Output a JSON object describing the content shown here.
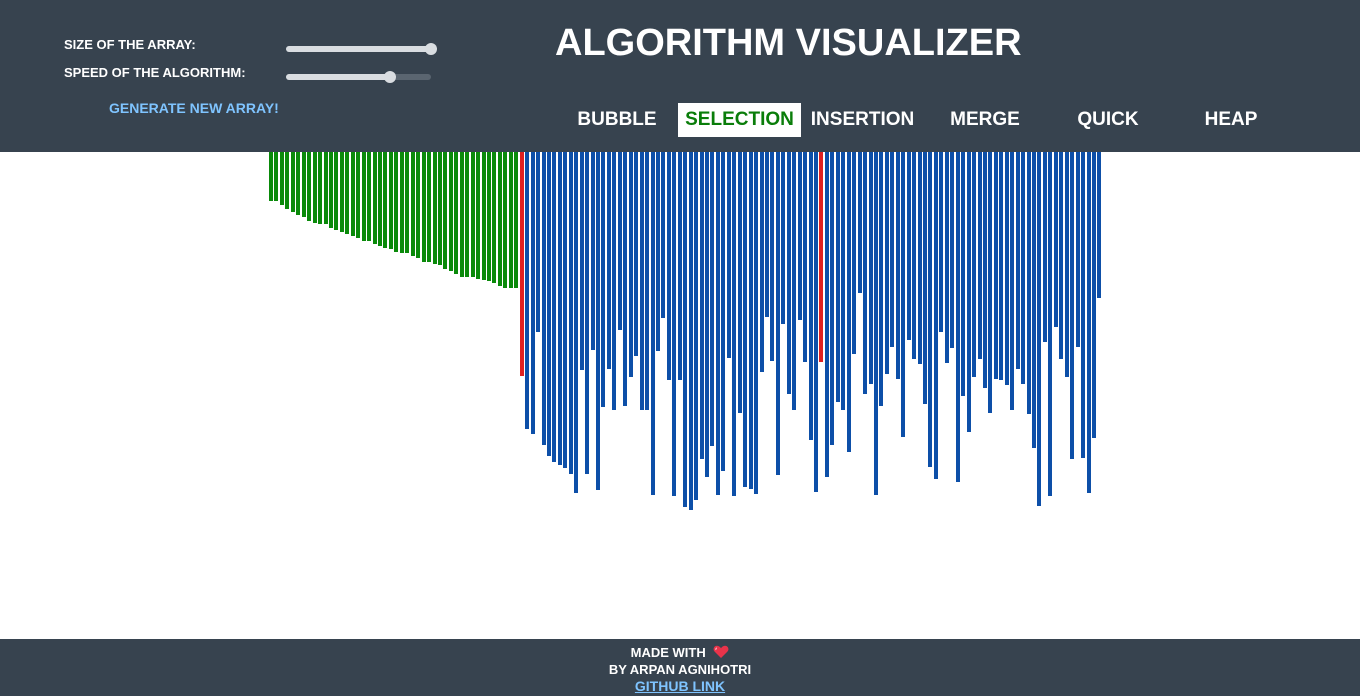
{
  "controls": {
    "size_label": "SIZE OF THE ARRAY:",
    "speed_label": "SPEED OF THE ALGORITHM:",
    "size_value": 1.0,
    "speed_value": 0.72,
    "generate_label": "GENERATE NEW ARRAY!"
  },
  "header": {
    "title": "ALGORITHM VISUALIZER"
  },
  "algorithms": [
    {
      "label": "BUBBLE",
      "active": false
    },
    {
      "label": "SELECTION",
      "active": true
    },
    {
      "label": "INSERTION",
      "active": false
    },
    {
      "label": "MERGE",
      "active": false
    },
    {
      "label": "QUICK",
      "active": false
    },
    {
      "label": "HEAP",
      "active": false
    }
  ],
  "colors": {
    "header_bg": "#37434f",
    "sorted": "#0a8a0a",
    "unsorted": "#0d4fa8",
    "highlight": "#e02020",
    "active_text": "#0a7d0a",
    "link": "#7fc4ff"
  },
  "array": {
    "bar_heights": [
      49,
      49,
      53,
      57,
      60,
      63,
      65,
      69,
      71,
      72,
      72,
      76,
      78,
      80,
      82,
      84,
      86,
      89,
      89,
      92,
      94,
      96,
      97,
      100,
      101,
      101,
      104,
      106,
      110,
      110,
      112,
      113,
      117,
      119,
      122,
      125,
      125,
      125,
      127,
      128,
      129,
      131,
      134,
      136,
      136,
      136,
      224,
      277,
      282,
      180,
      293,
      304,
      310,
      313,
      316,
      322,
      341,
      218,
      322,
      198,
      338,
      255,
      217,
      258,
      178,
      254,
      225,
      204,
      258,
      258,
      343,
      199,
      166,
      228,
      344,
      228,
      355,
      358,
      348,
      307,
      325,
      294,
      343,
      319,
      206,
      344,
      261,
      335,
      337,
      342,
      220,
      165,
      209,
      323,
      172,
      242,
      258,
      168,
      210,
      288,
      340,
      210,
      325,
      293,
      250,
      258,
      300,
      202,
      141,
      242,
      232,
      343,
      254,
      222,
      195,
      227,
      285,
      188,
      207,
      212,
      252,
      315,
      327,
      180,
      211,
      196,
      330,
      244,
      280,
      225,
      207,
      236,
      261,
      227,
      228,
      233,
      258,
      217,
      232,
      262,
      296,
      354,
      190,
      344,
      175,
      207,
      225,
      307,
      195,
      306,
      341,
      286,
      146
    ],
    "sorted_count": 46,
    "highlight_indices": [
      46,
      101
    ]
  },
  "footer": {
    "made_with": "MADE WITH",
    "byline": "BY ARPAN AGNIHOTRI",
    "link_label": "GITHUB LINK"
  }
}
